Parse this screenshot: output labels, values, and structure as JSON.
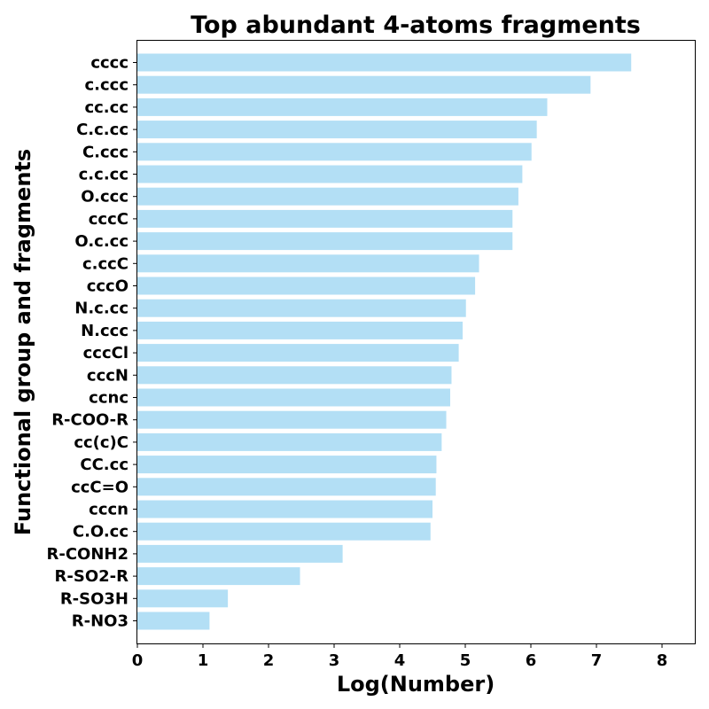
{
  "chart_data": {
    "type": "bar",
    "orientation": "horizontal",
    "title": "Top abundant 4-atoms fragments",
    "xlabel": "Log(Number)",
    "ylabel": "Functional group and fragments",
    "xlim": [
      0,
      8.5
    ],
    "xticks": [
      "0",
      "1",
      "2",
      "3",
      "4",
      "5",
      "6",
      "7",
      "8"
    ],
    "grid": false,
    "bar_color": "#b3dff5",
    "categories": [
      "cccc",
      "c.ccc",
      "cc.cc",
      "C.c.cc",
      "C.ccc",
      "c.c.cc",
      "O.ccc",
      "cccC",
      "O.c.cc",
      "c.ccC",
      "cccO",
      "N.c.cc",
      "N.ccc",
      "cccCl",
      "cccN",
      "ccnc",
      "R-COO-R",
      "cc(c)C",
      "CC.cc",
      "ccC=O",
      "cccn",
      "C.O.cc",
      "R-CONH2",
      "R-SO2-R",
      "R-SO3H",
      "R-NO3"
    ],
    "values": [
      7.53,
      6.91,
      6.25,
      6.09,
      6.01,
      5.87,
      5.81,
      5.72,
      5.72,
      5.21,
      5.15,
      5.01,
      4.96,
      4.9,
      4.79,
      4.77,
      4.71,
      4.64,
      4.56,
      4.55,
      4.5,
      4.47,
      3.13,
      2.48,
      1.38,
      1.1
    ]
  }
}
